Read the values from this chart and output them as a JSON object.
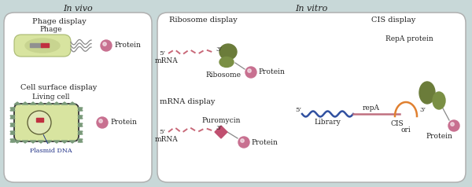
{
  "fig_w": 6.0,
  "fig_h": 2.38,
  "dpi": 100,
  "bg_color": "#c8d8d8",
  "box_color": "white",
  "box_edge": "#aaaaaa",
  "phage_fill": "#d8e4a0",
  "phage_edge": "#a8b870",
  "cell_fill": "#d8e4a0",
  "cell_edge": "#404040",
  "olive1": "#6b7c3a",
  "olive2": "#7a8f44",
  "protein_col": "#c87090",
  "dna_red": "#c03040",
  "dna_gray": "#909090",
  "pink_dash": "#c86878",
  "line_blue": "#3050a0",
  "line_pink": "#c07080",
  "line_orange": "#e08030",
  "text_col": "#222222",
  "tri_col": "#7a9a7a",
  "invivo_title": "In vivo",
  "invitro_title": "In vitro",
  "phage_disp": "Phage display",
  "phage_lbl": "Phage",
  "cell_disp": "Cell surface display",
  "cell_lbl": "Living cell",
  "plasmid_lbl": "Plasmid DNA",
  "ribo_disp": "Ribosome display",
  "ribo_lbl": "Ribosome",
  "mrna_disp": "mRNA display",
  "puro_lbl": "Puromycin",
  "cis_disp": "CIS display",
  "repa_lbl": "RepA protein",
  "protein_lbl": "Protein",
  "mrna_lbl": "mRNA",
  "five_prime": "5’",
  "three_prime": "3’",
  "repa_txt": "repA",
  "cis_txt": "CIS",
  "ori_txt": "ori",
  "lib_txt": "Library"
}
